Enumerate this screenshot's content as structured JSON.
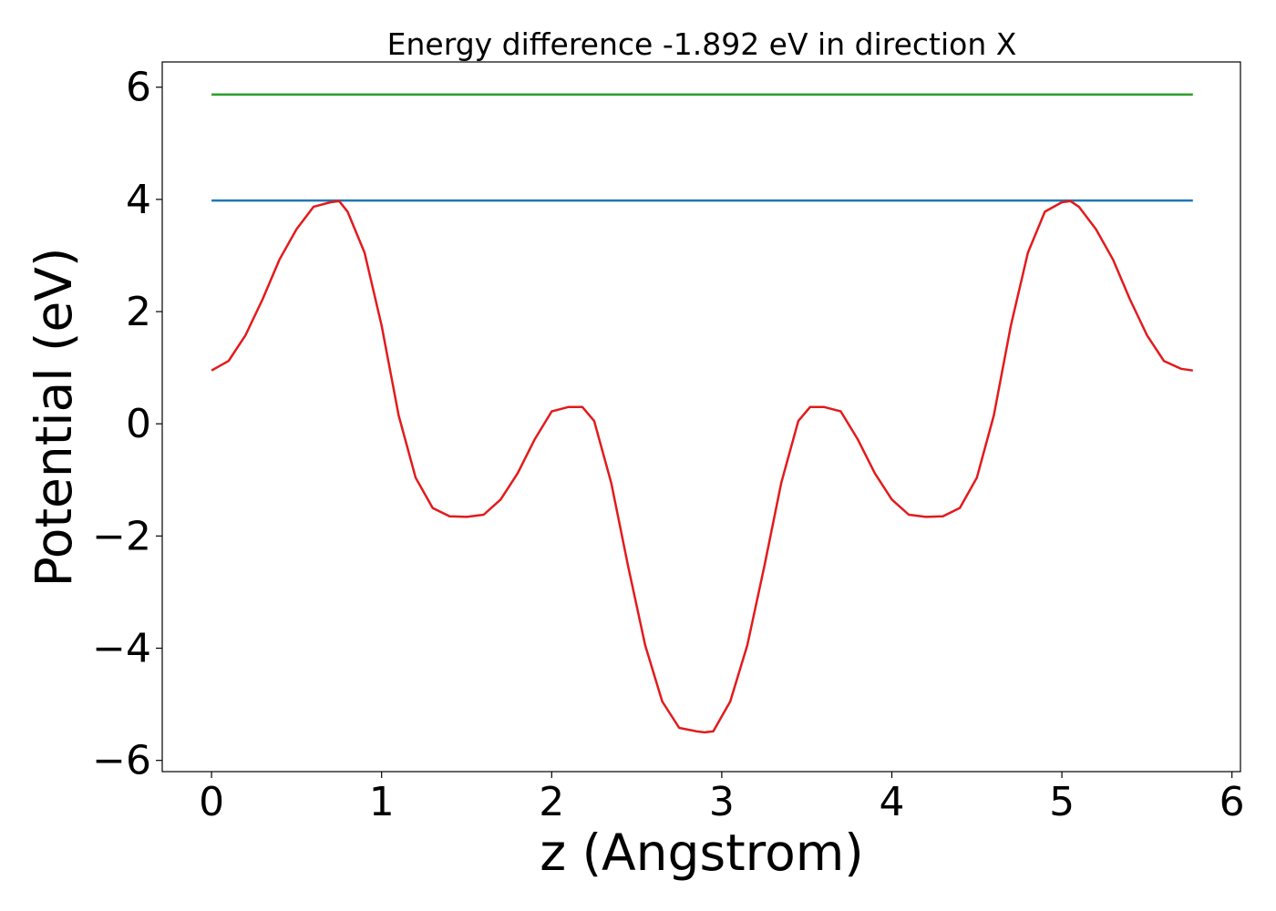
{
  "chart_data": {
    "type": "line",
    "title": "Energy difference -1.892 eV in direction X",
    "xlabel": "z (Angstrom)",
    "ylabel": "Potential (eV)",
    "xlim": [
      -0.29,
      6.05
    ],
    "ylim": [
      -6.2,
      6.45
    ],
    "xticks": [
      0,
      1,
      2,
      3,
      4,
      5,
      6
    ],
    "xtick_labels": [
      "0",
      "1",
      "2",
      "3",
      "4",
      "5",
      "6"
    ],
    "yticks": [
      -6,
      -4,
      -2,
      0,
      2,
      4,
      6
    ],
    "ytick_labels": [
      "−6",
      "−4",
      "−2",
      "0",
      "2",
      "4",
      "6"
    ],
    "grid": false,
    "series": [
      {
        "color": "#2ca02c",
        "x": [
          0,
          5.77
        ],
        "y": [
          5.87,
          5.87
        ]
      },
      {
        "color": "#1f77b4",
        "x": [
          0,
          5.77
        ],
        "y": [
          3.98,
          3.98
        ]
      },
      {
        "color": "#e31a1c",
        "x": [
          0,
          0.1,
          0.2,
          0.3,
          0.4,
          0.5,
          0.6,
          0.7,
          0.75,
          0.8,
          0.9,
          1.0,
          1.1,
          1.2,
          1.3,
          1.4,
          1.5,
          1.6,
          1.7,
          1.8,
          1.9,
          2.0,
          2.1,
          2.18,
          2.25,
          2.35,
          2.45,
          2.55,
          2.65,
          2.75,
          2.85,
          2.9,
          2.95,
          3.05,
          3.15,
          3.25,
          3.35,
          3.45,
          3.52,
          3.6,
          3.7,
          3.8,
          3.9,
          4.0,
          4.1,
          4.2,
          4.3,
          4.4,
          4.5,
          4.6,
          4.7,
          4.8,
          4.9,
          5.0,
          5.05,
          5.1,
          5.2,
          5.3,
          5.4,
          5.5,
          5.6,
          5.7,
          5.77
        ],
        "y": [
          0.95,
          1.12,
          1.58,
          2.22,
          2.93,
          3.47,
          3.87,
          3.95,
          3.97,
          3.78,
          3.05,
          1.75,
          0.15,
          -0.96,
          -1.5,
          -1.65,
          -1.66,
          -1.62,
          -1.35,
          -0.88,
          -0.28,
          0.22,
          0.3,
          0.3,
          0.05,
          -1.05,
          -2.55,
          -3.95,
          -4.95,
          -5.42,
          -5.48,
          -5.5,
          -5.48,
          -4.95,
          -3.95,
          -2.55,
          -1.05,
          0.05,
          0.3,
          0.3,
          0.22,
          -0.28,
          -0.88,
          -1.35,
          -1.62,
          -1.66,
          -1.65,
          -1.5,
          -0.96,
          0.15,
          1.75,
          3.05,
          3.78,
          3.95,
          3.97,
          3.87,
          3.47,
          2.93,
          2.22,
          1.58,
          1.12,
          0.98,
          0.95
        ]
      }
    ]
  }
}
